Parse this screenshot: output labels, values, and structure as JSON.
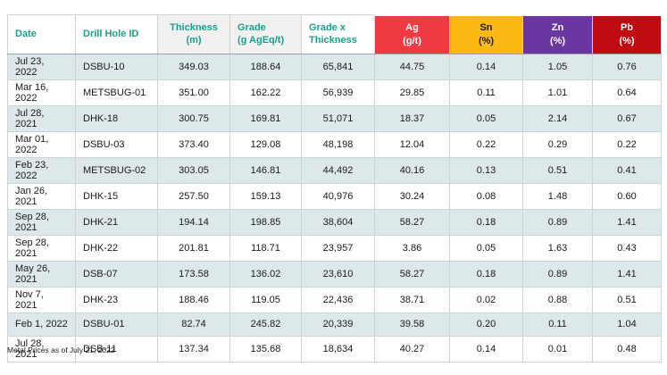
{
  "table": {
    "columns": [
      {
        "line1": "Date",
        "line2": ""
      },
      {
        "line1": "Drill Hole ID",
        "line2": ""
      },
      {
        "line1": "Thickness",
        "line2": "(m)"
      },
      {
        "line1": "Grade",
        "line2": "(g AgEq/t)"
      },
      {
        "line1": "Grade x",
        "line2": "Thickness"
      },
      {
        "line1": "Ag",
        "line2": "(g/t)"
      },
      {
        "line1": "Sn",
        "line2": "(%)"
      },
      {
        "line1": "Zn",
        "line2": "(%)"
      },
      {
        "line1": "Pb",
        "line2": "(%)"
      }
    ],
    "rows": [
      [
        "Jul 23, 2022",
        "DSBU-10",
        "349.03",
        "188.64",
        "65,841",
        "44.75",
        "0.14",
        "1.05",
        "0.76"
      ],
      [
        "Mar 16, 2022",
        "METSBUG-01",
        "351.00",
        "162.22",
        "56,939",
        "29.85",
        "0.11",
        "1.01",
        "0.64"
      ],
      [
        "Jul 28, 2021",
        "DHK-18",
        "300.75",
        "169.81",
        "51,071",
        "18.37",
        "0.05",
        "2.14",
        "0.67"
      ],
      [
        "Mar 01, 2022",
        "DSBU-03",
        "373.40",
        "129.08",
        "48,198",
        "12.04",
        "0.22",
        "0.29",
        "0.22"
      ],
      [
        "Feb 23, 2022",
        "METSBUG-02",
        "303.05",
        "146.81",
        "44,492",
        "40.16",
        "0.13",
        "0.51",
        "0.41"
      ],
      [
        "Jan 26, 2021",
        "DHK-15",
        "257.50",
        "159.13",
        "40,976",
        "30.24",
        "0.08",
        "1.48",
        "0.60"
      ],
      [
        "Sep 28, 2021",
        "DHK-21",
        "194.14",
        "198.85",
        "38,604",
        "58.27",
        "0.18",
        "0.89",
        "1.41"
      ],
      [
        "Sep 28, 2021",
        "DHK-22",
        "201.81",
        "118.71",
        "23,957",
        "3.86",
        "0.05",
        "1.63",
        "0.43"
      ],
      [
        "May 26, 2021",
        "DSB-07",
        "173.58",
        "136.02",
        "23,610",
        "58.27",
        "0.18",
        "0.89",
        "1.41"
      ],
      [
        "Nov 7, 2021",
        "DHK-23",
        "188.46",
        "119.05",
        "22,436",
        "38.71",
        "0.02",
        "0.88",
        "0.51"
      ],
      [
        "Feb 1, 2022",
        "DSBU-01",
        "82.74",
        "245.82",
        "20,339",
        "39.58",
        "0.20",
        "0.11",
        "1.04"
      ],
      [
        "Jul 28, 2021",
        "DSB-11",
        "137.34",
        "135.68",
        "18,634",
        "40.27",
        "0.14",
        "0.01",
        "0.48"
      ]
    ]
  },
  "footnote": "Metal Prices as of July 21, 2022",
  "colors": {
    "teal": "#1e9e8c",
    "ag-red": "#ee3a42",
    "sn-yellow": "#fdb813",
    "zn-purple": "#6a36a2",
    "pb-red": "#c00b10",
    "row-shade": "#dde8eb"
  }
}
